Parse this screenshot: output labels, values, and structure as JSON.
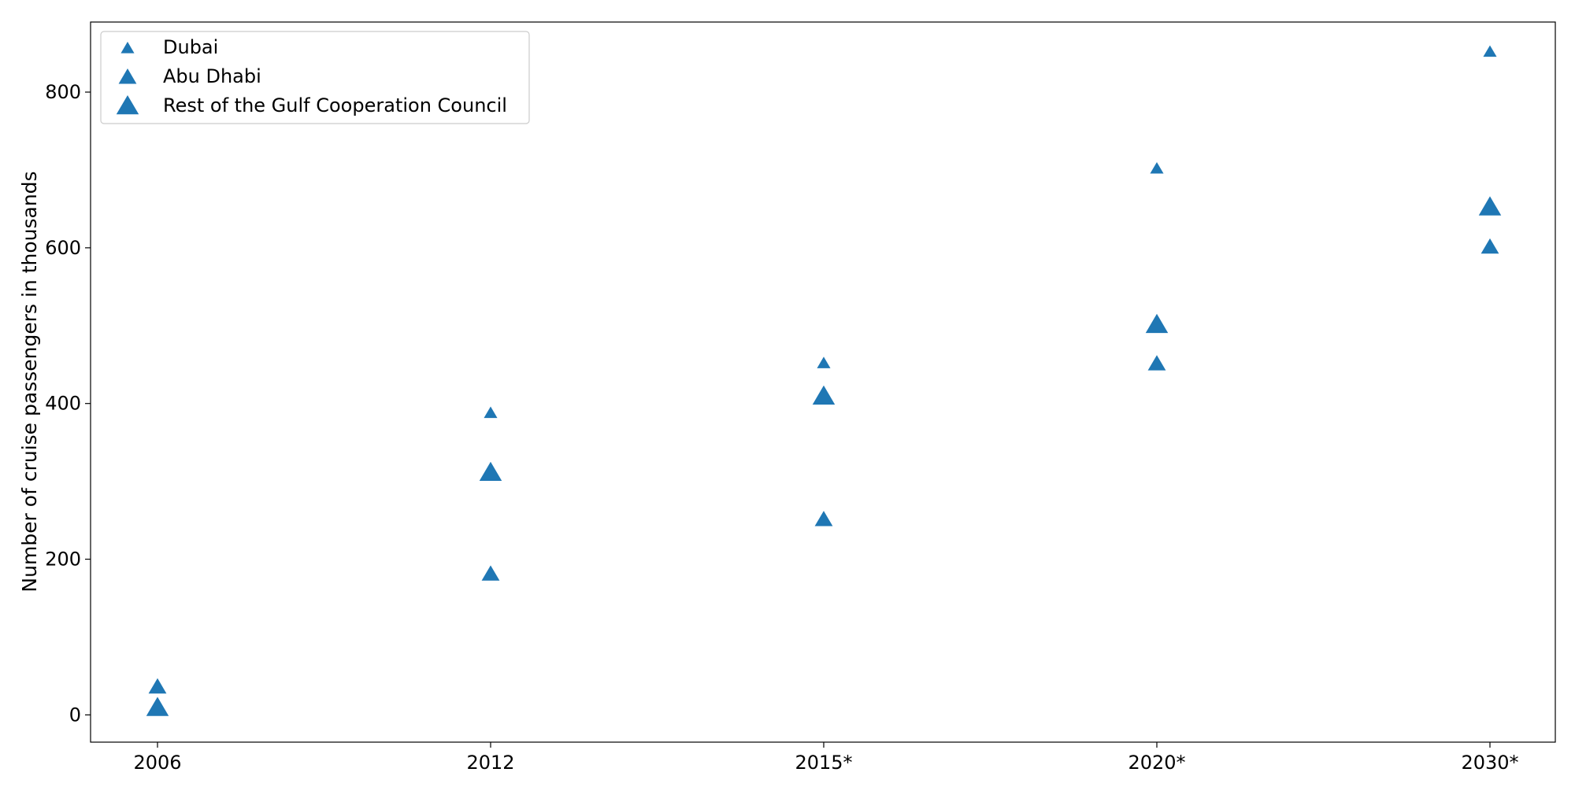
{
  "chart_data": {
    "type": "scatter",
    "title": "",
    "xlabel": "",
    "ylabel": "Number of cruise passengers in thousands",
    "categories": [
      "2006",
      "2012",
      "2015*",
      "2020*",
      "2030*"
    ],
    "ylim": [
      -35,
      890
    ],
    "yticks": [
      0,
      200,
      400,
      600,
      800
    ],
    "grid": false,
    "legend": "upper-left",
    "color": "#1f77b4",
    "series": [
      {
        "name": "Dubai",
        "marker": "triangle-small",
        "values": [
          null,
          387,
          451,
          701,
          851
        ]
      },
      {
        "name": "Abu Dhabi",
        "marker": "triangle-medium",
        "values": [
          35,
          180,
          250,
          450,
          600
        ]
      },
      {
        "name": "Rest of the Gulf Cooperation Council",
        "marker": "triangle-large",
        "values": [
          8,
          310,
          408,
          500,
          651
        ]
      }
    ]
  }
}
